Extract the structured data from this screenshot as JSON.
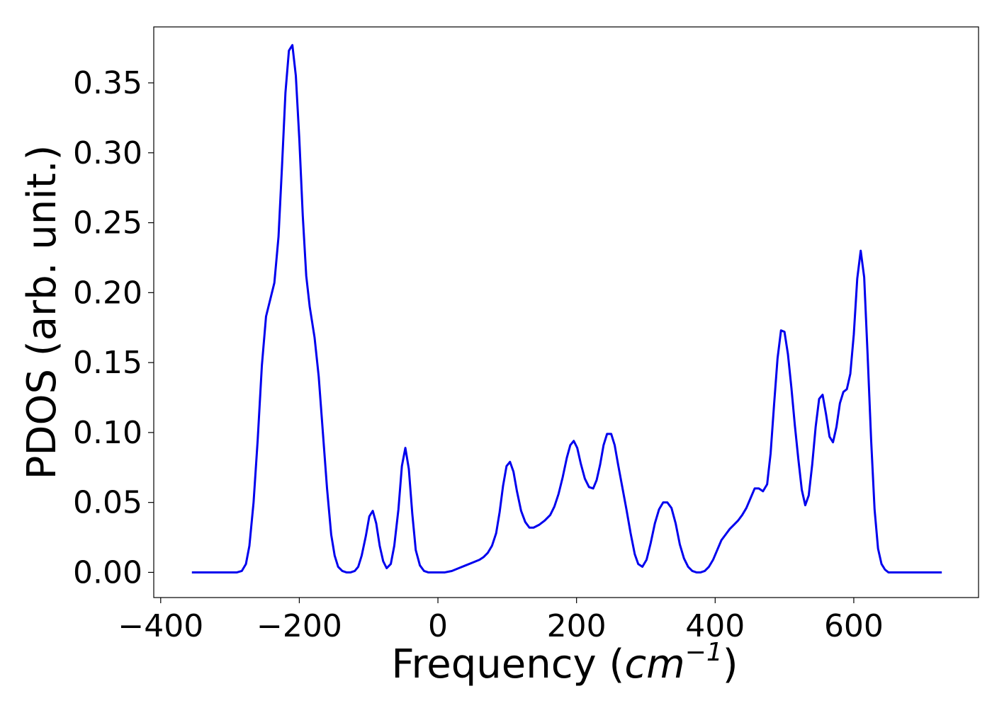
{
  "chart_data": {
    "type": "line",
    "title": "",
    "xlabel_main": "Frequency (",
    "xlabel_math": "cm",
    "xlabel_sup": "−1",
    "xlabel_close": ")",
    "ylabel": "PDOS (arb. unit.)",
    "xlim": [
      -410,
      780
    ],
    "ylim": [
      -0.018,
      0.39
    ],
    "x_ticks": [
      -400,
      -200,
      0,
      200,
      400,
      600
    ],
    "x_tick_labels": [
      "−400",
      "−200",
      "0",
      "200",
      "400",
      "600"
    ],
    "y_ticks": [
      0.0,
      0.05,
      0.1,
      0.15,
      0.2,
      0.25,
      0.3,
      0.35
    ],
    "y_tick_labels": [
      "0.00",
      "0.05",
      "0.10",
      "0.15",
      "0.20",
      "0.25",
      "0.30",
      "0.35"
    ],
    "grid": false,
    "line_color": "#0000ee",
    "series": [
      {
        "points": [
          [
            -355,
            0.0
          ],
          [
            -290,
            0.0
          ],
          [
            -283,
            0.001
          ],
          [
            -277,
            0.006
          ],
          [
            -272,
            0.019
          ],
          [
            -266,
            0.05
          ],
          [
            -260,
            0.095
          ],
          [
            -254,
            0.148
          ],
          [
            -248,
            0.183
          ],
          [
            -242,
            0.195
          ],
          [
            -236,
            0.207
          ],
          [
            -230,
            0.24
          ],
          [
            -225,
            0.29
          ],
          [
            -220,
            0.343
          ],
          [
            -215,
            0.373
          ],
          [
            -210,
            0.377
          ],
          [
            -205,
            0.355
          ],
          [
            -200,
            0.31
          ],
          [
            -195,
            0.255
          ],
          [
            -190,
            0.212
          ],
          [
            -185,
            0.19
          ],
          [
            -178,
            0.168
          ],
          [
            -172,
            0.14
          ],
          [
            -166,
            0.1
          ],
          [
            -160,
            0.06
          ],
          [
            -154,
            0.027
          ],
          [
            -149,
            0.012
          ],
          [
            -144,
            0.004
          ],
          [
            -138,
            0.001
          ],
          [
            -132,
            0.0
          ],
          [
            -126,
            0.0
          ],
          [
            -120,
            0.001
          ],
          [
            -115,
            0.004
          ],
          [
            -110,
            0.012
          ],
          [
            -104,
            0.026
          ],
          [
            -99,
            0.04
          ],
          [
            -94,
            0.044
          ],
          [
            -89,
            0.035
          ],
          [
            -84,
            0.019
          ],
          [
            -79,
            0.008
          ],
          [
            -74,
            0.003
          ],
          [
            -68,
            0.006
          ],
          [
            -63,
            0.019
          ],
          [
            -57,
            0.045
          ],
          [
            -52,
            0.076
          ],
          [
            -47,
            0.089
          ],
          [
            -42,
            0.074
          ],
          [
            -37,
            0.042
          ],
          [
            -32,
            0.016
          ],
          [
            -26,
            0.005
          ],
          [
            -20,
            0.001
          ],
          [
            -14,
            0.0
          ],
          [
            0,
            0.0
          ],
          [
            10,
            0.0
          ],
          [
            20,
            0.001
          ],
          [
            30,
            0.003
          ],
          [
            40,
            0.005
          ],
          [
            50,
            0.007
          ],
          [
            60,
            0.009
          ],
          [
            66,
            0.011
          ],
          [
            72,
            0.014
          ],
          [
            78,
            0.019
          ],
          [
            84,
            0.028
          ],
          [
            89,
            0.043
          ],
          [
            94,
            0.062
          ],
          [
            99,
            0.076
          ],
          [
            104,
            0.079
          ],
          [
            109,
            0.072
          ],
          [
            114,
            0.058
          ],
          [
            120,
            0.044
          ],
          [
            126,
            0.036
          ],
          [
            132,
            0.032
          ],
          [
            138,
            0.032
          ],
          [
            146,
            0.034
          ],
          [
            154,
            0.037
          ],
          [
            162,
            0.041
          ],
          [
            168,
            0.047
          ],
          [
            174,
            0.056
          ],
          [
            180,
            0.068
          ],
          [
            186,
            0.082
          ],
          [
            191,
            0.091
          ],
          [
            196,
            0.094
          ],
          [
            201,
            0.089
          ],
          [
            206,
            0.078
          ],
          [
            212,
            0.067
          ],
          [
            218,
            0.061
          ],
          [
            224,
            0.06
          ],
          [
            229,
            0.066
          ],
          [
            234,
            0.077
          ],
          [
            239,
            0.091
          ],
          [
            244,
            0.099
          ],
          [
            250,
            0.099
          ],
          [
            255,
            0.091
          ],
          [
            260,
            0.077
          ],
          [
            266,
            0.061
          ],
          [
            272,
            0.045
          ],
          [
            278,
            0.028
          ],
          [
            284,
            0.013
          ],
          [
            289,
            0.006
          ],
          [
            295,
            0.004
          ],
          [
            301,
            0.009
          ],
          [
            307,
            0.021
          ],
          [
            313,
            0.035
          ],
          [
            319,
            0.045
          ],
          [
            325,
            0.05
          ],
          [
            331,
            0.05
          ],
          [
            337,
            0.046
          ],
          [
            343,
            0.035
          ],
          [
            349,
            0.02
          ],
          [
            355,
            0.01
          ],
          [
            361,
            0.004
          ],
          [
            367,
            0.001
          ],
          [
            373,
            0.0
          ],
          [
            379,
            0.0
          ],
          [
            385,
            0.001
          ],
          [
            391,
            0.004
          ],
          [
            397,
            0.009
          ],
          [
            403,
            0.016
          ],
          [
            409,
            0.023
          ],
          [
            415,
            0.027
          ],
          [
            421,
            0.031
          ],
          [
            427,
            0.034
          ],
          [
            433,
            0.037
          ],
          [
            439,
            0.041
          ],
          [
            445,
            0.046
          ],
          [
            451,
            0.053
          ],
          [
            457,
            0.06
          ],
          [
            463,
            0.06
          ],
          [
            469,
            0.058
          ],
          [
            475,
            0.063
          ],
          [
            480,
            0.085
          ],
          [
            485,
            0.12
          ],
          [
            490,
            0.153
          ],
          [
            495,
            0.173
          ],
          [
            500,
            0.172
          ],
          [
            505,
            0.156
          ],
          [
            510,
            0.132
          ],
          [
            515,
            0.105
          ],
          [
            520,
            0.081
          ],
          [
            525,
            0.059
          ],
          [
            530,
            0.048
          ],
          [
            535,
            0.055
          ],
          [
            540,
            0.077
          ],
          [
            545,
            0.104
          ],
          [
            550,
            0.124
          ],
          [
            555,
            0.127
          ],
          [
            560,
            0.113
          ],
          [
            565,
            0.097
          ],
          [
            570,
            0.093
          ],
          [
            575,
            0.104
          ],
          [
            580,
            0.121
          ],
          [
            585,
            0.129
          ],
          [
            590,
            0.131
          ],
          [
            595,
            0.142
          ],
          [
            600,
            0.17
          ],
          [
            605,
            0.21
          ],
          [
            610,
            0.23
          ],
          [
            615,
            0.211
          ],
          [
            620,
            0.155
          ],
          [
            625,
            0.095
          ],
          [
            630,
            0.045
          ],
          [
            635,
            0.017
          ],
          [
            640,
            0.006
          ],
          [
            645,
            0.002
          ],
          [
            650,
            0.0
          ],
          [
            660,
            0.0
          ],
          [
            670,
            0.0
          ],
          [
            727,
            0.0
          ]
        ]
      }
    ]
  }
}
